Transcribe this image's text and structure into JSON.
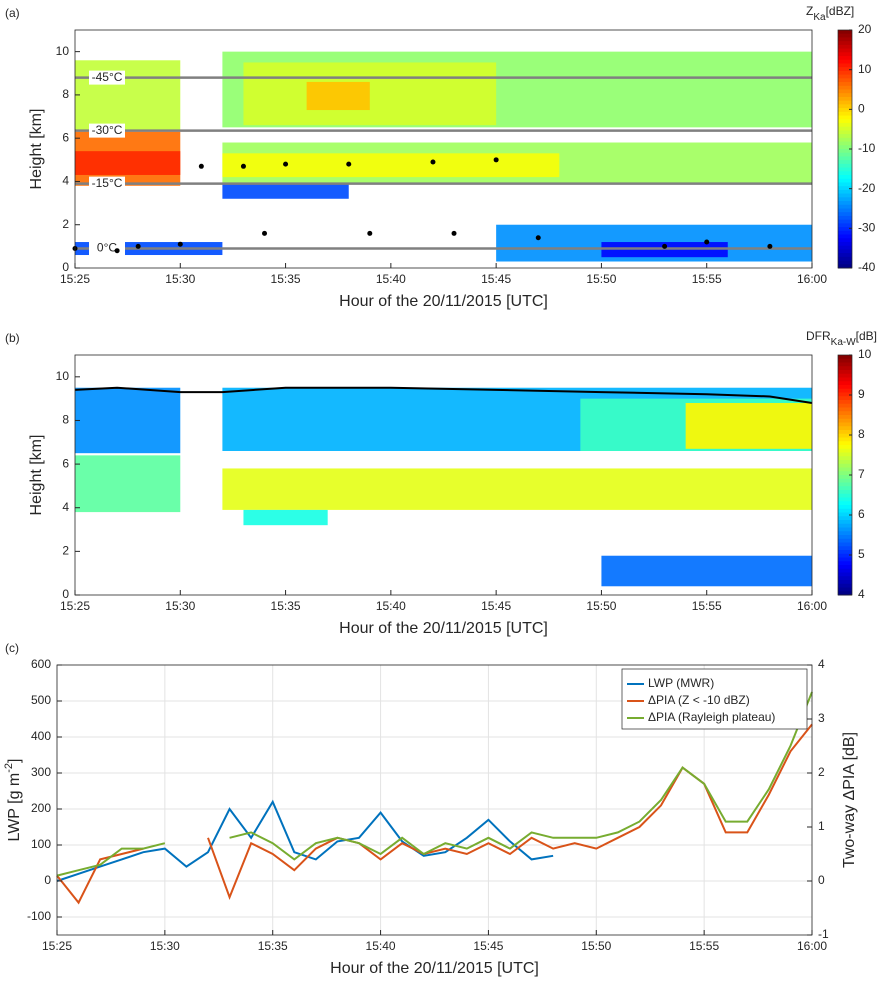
{
  "chart_data": [
    {
      "type": "heatmap",
      "label": "(a)",
      "xlabel": "Hour of the 20/11/2015 [UTC]",
      "ylabel": "Height [km]",
      "xlim": [
        "15:25",
        "16:00"
      ],
      "xticks": [
        "15:25",
        "15:30",
        "15:35",
        "15:40",
        "15:45",
        "15:50",
        "15:55",
        "16:00"
      ],
      "ylim": [
        0,
        11
      ],
      "yticks": [
        0,
        2,
        4,
        6,
        8,
        10
      ],
      "colormap": "jet",
      "clim": [
        -40,
        20
      ],
      "cticks": [
        -40,
        -30,
        -20,
        -10,
        0,
        10,
        20
      ],
      "cbar_label": {
        "main": "Z",
        "sub": "Ka",
        "unit": "[dBZ]"
      },
      "cells": [
        {
          "x0": "15:25",
          "x1": "15:30",
          "y0": 6.4,
          "y1": 9.6,
          "value": -6
        },
        {
          "x0": "15:25",
          "x1": "15:30",
          "y0": 3.8,
          "y1": 6.3,
          "value": 6
        },
        {
          "x0": "15:25",
          "x1": "15:30",
          "y0": 4.3,
          "y1": 5.4,
          "value": 10
        },
        {
          "x0": "15:32",
          "x1": "16:00",
          "y0": 6.5,
          "y1": 10.0,
          "value": -9
        },
        {
          "x0": "15:33",
          "x1": "15:45",
          "y0": 6.6,
          "y1": 9.5,
          "value": -5
        },
        {
          "x0": "15:36",
          "x1": "15:39",
          "y0": 7.3,
          "y1": 8.6,
          "value": 1
        },
        {
          "x0": "15:32",
          "x1": "16:00",
          "y0": 3.9,
          "y1": 5.8,
          "value": -8
        },
        {
          "x0": "15:32",
          "x1": "15:48",
          "y0": 4.2,
          "y1": 5.3,
          "value": -3
        },
        {
          "x0": "15:32",
          "x1": "15:38",
          "y0": 3.2,
          "y1": 3.9,
          "value": -28
        },
        {
          "x0": "15:25",
          "x1": "15:32",
          "y0": 0.6,
          "y1": 1.2,
          "value": -28
        },
        {
          "x0": "15:45",
          "x1": "16:00",
          "y0": 0.3,
          "y1": 2.0,
          "value": -24
        },
        {
          "x0": "15:50",
          "x1": "15:56",
          "y0": 0.5,
          "y1": 1.2,
          "value": -32
        }
      ],
      "isotherms": [
        {
          "label": "0°C",
          "height": 0.9
        },
        {
          "label": "-15°C",
          "height": 3.9
        },
        {
          "label": "-30°C",
          "height": 6.35
        },
        {
          "label": "-45°C",
          "height": 8.8
        }
      ],
      "points": {
        "x": [
          "15:25",
          "15:27",
          "15:28",
          "15:30",
          "15:31",
          "15:33",
          "15:34",
          "15:35",
          "15:38",
          "15:39",
          "15:42",
          "15:43",
          "15:45",
          "15:47",
          "15:53",
          "15:55",
          "15:58"
        ],
        "y": [
          0.9,
          0.8,
          1.0,
          1.1,
          4.7,
          4.7,
          1.6,
          4.8,
          4.8,
          1.6,
          4.9,
          1.6,
          5.0,
          1.4,
          1.0,
          1.2,
          1.0
        ]
      }
    },
    {
      "type": "heatmap",
      "label": "(b)",
      "xlabel": "Hour of the 20/11/2015 [UTC]",
      "ylabel": "Height [km]",
      "xlim": [
        "15:25",
        "16:00"
      ],
      "xticks": [
        "15:25",
        "15:30",
        "15:35",
        "15:40",
        "15:45",
        "15:50",
        "15:55",
        "16:00"
      ],
      "ylim": [
        0,
        11
      ],
      "yticks": [
        0,
        2,
        4,
        6,
        8,
        10
      ],
      "colormap": "jet",
      "clim": [
        4,
        10
      ],
      "cticks": [
        4,
        5,
        6,
        7,
        8,
        9,
        10
      ],
      "cbar_label": {
        "main": "DFR",
        "sub": "Ka-W",
        "unit": "[dB]"
      },
      "cells": [
        {
          "x0": "15:25",
          "x1": "15:30",
          "y0": 6.5,
          "y1": 9.5,
          "value": 5.6
        },
        {
          "x0": "15:25",
          "x1": "15:30",
          "y0": 3.8,
          "y1": 6.4,
          "value": 6.8
        },
        {
          "x0": "15:32",
          "x1": "16:00",
          "y0": 6.6,
          "y1": 9.5,
          "value": 5.8
        },
        {
          "x0": "15:49",
          "x1": "16:00",
          "y0": 6.6,
          "y1": 9.0,
          "value": 6.6
        },
        {
          "x0": "15:54",
          "x1": "16:00",
          "y0": 6.7,
          "y1": 8.8,
          "value": 7.8
        },
        {
          "x0": "15:32",
          "x1": "16:00",
          "y0": 3.9,
          "y1": 5.8,
          "value": 7.6
        },
        {
          "x0": "15:33",
          "x1": "15:37",
          "y0": 3.2,
          "y1": 3.9,
          "value": 6.4
        },
        {
          "x0": "15:50",
          "x1": "16:00",
          "y0": 0.4,
          "y1": 1.8,
          "value": 5.4
        }
      ],
      "contour": {
        "x": [
          "15:25",
          "15:27",
          "15:30",
          "15:32",
          "15:35",
          "15:40",
          "15:45",
          "15:50",
          "15:55",
          "15:58",
          "16:00"
        ],
        "y": [
          9.4,
          9.5,
          9.3,
          9.3,
          9.5,
          9.5,
          9.4,
          9.3,
          9.2,
          9.1,
          8.8
        ]
      }
    },
    {
      "type": "line",
      "label": "(c)",
      "xlabel": "Hour of the 20/11/2015 [UTC]",
      "ylabel": {
        "main": "LWP [g m",
        "sup": "-2",
        "end": "]"
      },
      "y2label": "Two-way ΔPIA [dB]",
      "xlim": [
        "15:25",
        "16:00"
      ],
      "xticks": [
        "15:25",
        "15:30",
        "15:35",
        "15:40",
        "15:45",
        "15:50",
        "15:55",
        "16:00"
      ],
      "ylim": [
        -150,
        600
      ],
      "yticks": [
        -100,
        0,
        100,
        200,
        300,
        400,
        500,
        600
      ],
      "y2lim": [
        -1,
        4
      ],
      "y2ticks": [
        -1,
        0,
        1,
        2,
        3,
        4
      ],
      "grid": true,
      "legend": "upper-right",
      "x": [
        "15:25",
        "15:26",
        "15:27",
        "15:28",
        "15:29",
        "15:30",
        "15:31",
        "15:32",
        "15:33",
        "15:34",
        "15:35",
        "15:36",
        "15:37",
        "15:38",
        "15:39",
        "15:40",
        "15:41",
        "15:42",
        "15:43",
        "15:44",
        "15:45",
        "15:46",
        "15:47",
        "15:48",
        "15:49",
        "15:50",
        "15:51",
        "15:52",
        "15:53",
        "15:54",
        "15:55",
        "15:56",
        "15:57",
        "15:58",
        "15:59",
        "16:00"
      ],
      "series": [
        {
          "name": "LWP (MWR)",
          "color": "#0072bd",
          "values": [
            0,
            20,
            40,
            60,
            80,
            90,
            40,
            80,
            200,
            120,
            220,
            80,
            60,
            110,
            120,
            190,
            110,
            70,
            80,
            120,
            170,
            110,
            60,
            70,
            null,
            null,
            null,
            null,
            null,
            null,
            null,
            null,
            null,
            null,
            null,
            null
          ]
        },
        {
          "name": "ΔPIA (Z < -10 dBZ)",
          "color": "#d95319",
          "axis": "y2",
          "values": [
            0.1,
            -0.4,
            0.4,
            0.5,
            0.6,
            null,
            null,
            0.8,
            -0.3,
            0.7,
            0.5,
            0.2,
            0.6,
            0.8,
            0.7,
            0.4,
            0.7,
            0.5,
            0.6,
            0.5,
            0.7,
            0.5,
            0.8,
            0.6,
            0.7,
            0.6,
            0.8,
            1.0,
            1.4,
            2.1,
            1.8,
            0.9,
            0.9,
            1.6,
            2.4,
            2.9
          ]
        },
        {
          "name": "ΔPIA (Rayleigh plateau)",
          "color": "#77ac30",
          "axis": "y2",
          "values": [
            0.1,
            0.2,
            0.3,
            0.6,
            0.6,
            0.7,
            null,
            null,
            0.8,
            0.9,
            0.7,
            0.4,
            0.7,
            0.8,
            0.7,
            0.5,
            0.8,
            0.5,
            0.7,
            0.6,
            0.8,
            0.6,
            0.9,
            0.8,
            0.8,
            0.8,
            0.9,
            1.1,
            1.5,
            2.1,
            1.8,
            1.1,
            1.1,
            1.7,
            2.5,
            3.5
          ]
        }
      ]
    }
  ]
}
